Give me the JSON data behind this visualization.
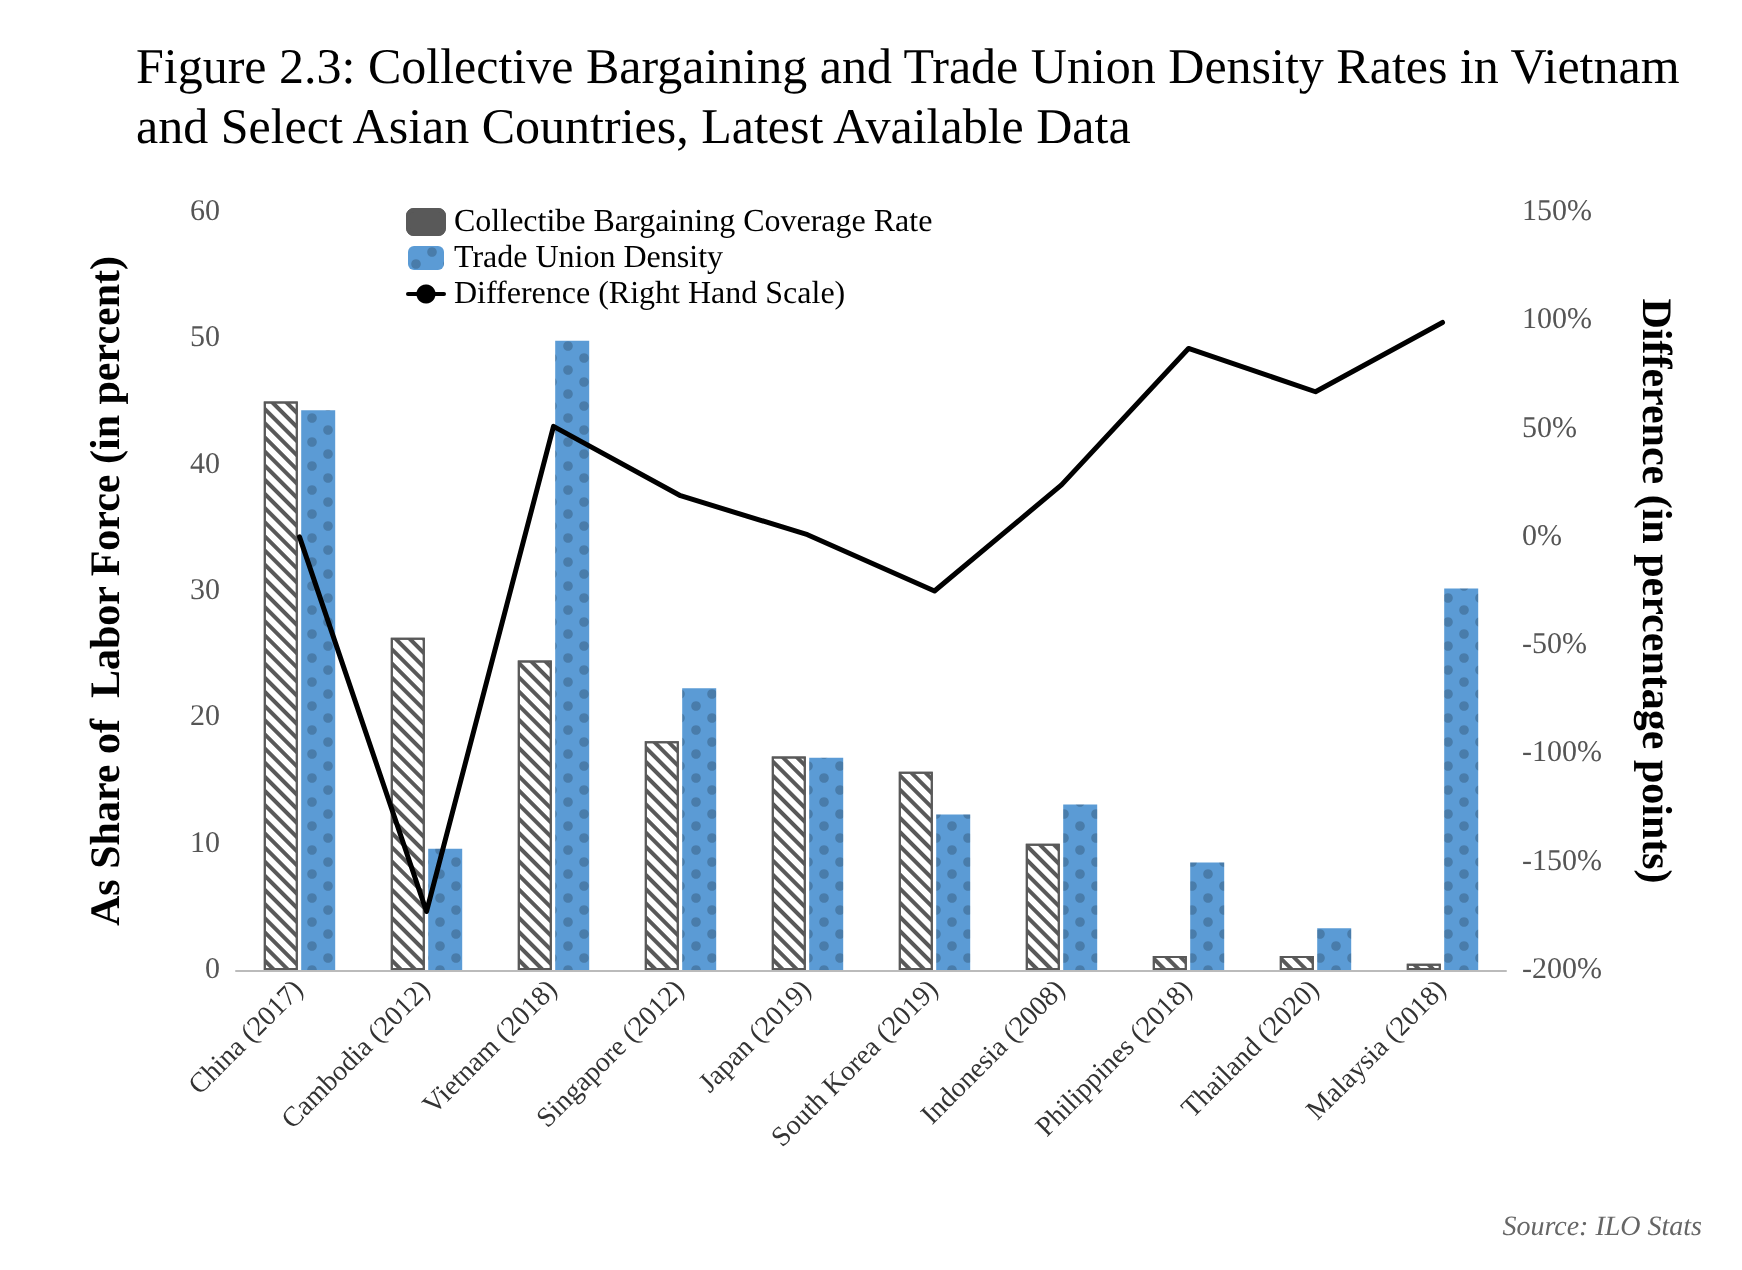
{
  "chart_data": {
    "type": "bar",
    "title": "Figure 2.3: Collective Bargaining and Trade Union Density Rates in Vietnam and Select Asian Countries, Latest Available Data",
    "categories": [
      "China (2017)",
      "Cambodia (2012)",
      "Vietnam (2018)",
      "Singapore (2012)",
      "Japan (2019)",
      "South Korea (2019)",
      "Indonesia (2008)",
      "Philippines (2018)",
      "Thailand (2020)",
      "Malaysia (2018)"
    ],
    "series": [
      {
        "name": "Collectibe Bargaining Coverage Rate",
        "color": "#595959",
        "values": [
          45,
          26.3,
          24.5,
          18.1,
          16.9,
          15.7,
          10,
          1.1,
          1.1,
          0.5
        ]
      },
      {
        "name": "Trade Union Density",
        "color": "#5b9bd5",
        "values": [
          44.3,
          9.6,
          49.8,
          22.3,
          16.8,
          12.3,
          13.1,
          8.5,
          3.3,
          30.2
        ]
      },
      {
        "name": "Difference (Right Hand Scale)",
        "type": "line",
        "axis": "y2",
        "color": "#000000",
        "values": [
          0,
          -173,
          51,
          19,
          1,
          -25,
          24,
          87,
          67,
          99
        ]
      }
    ],
    "ylabel": "As Share of  Labor Force (in percent)",
    "y2label": "Difference (in percentage points)",
    "ylim": [
      0,
      60
    ],
    "yticks": [
      0,
      10,
      20,
      30,
      40,
      50,
      60
    ],
    "y2lim": [
      -200,
      150
    ],
    "y2ticks": [
      {
        "value": -200,
        "label": "-200%"
      },
      {
        "value": -150,
        "label": "-150%"
      },
      {
        "value": -100,
        "label": "-100%"
      },
      {
        "value": -50,
        "label": "-50%"
      },
      {
        "value": 0,
        "label": "0%"
      },
      {
        "value": 50,
        "label": "50%"
      },
      {
        "value": 100,
        "label": "100%"
      },
      {
        "value": 150,
        "label": "150%"
      }
    ],
    "grid": false,
    "legend": "top left",
    "marker": "none",
    "line_style": "solid",
    "annotations": [
      "Source: ILO Stats"
    ]
  }
}
